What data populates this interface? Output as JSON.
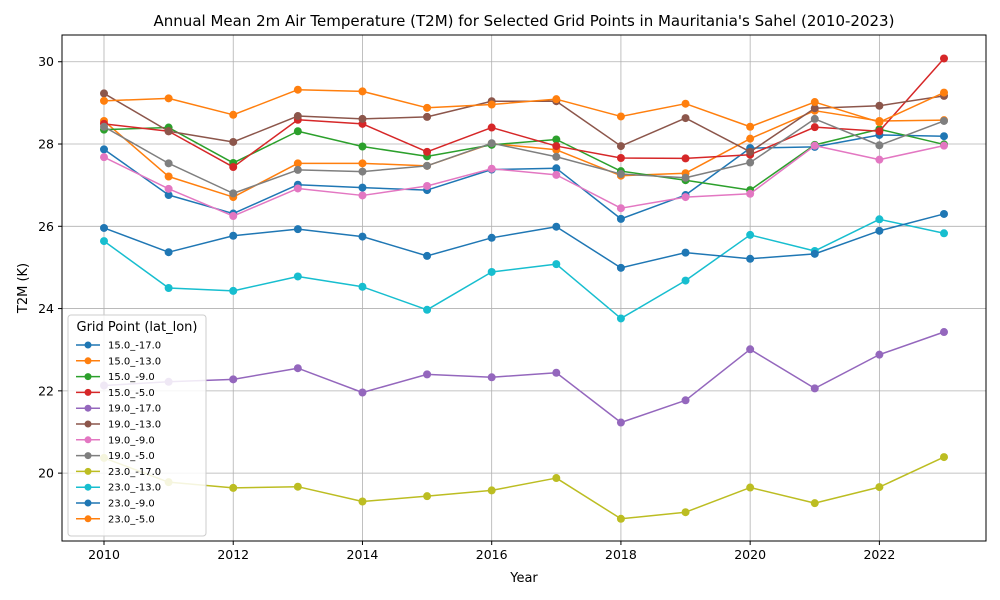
{
  "chart_data": {
    "type": "line",
    "title": "Annual Mean 2m Air Temperature (T2M) for Selected Grid Points in Mauritania's Sahel (2010-2023)",
    "xlabel": "Year",
    "ylabel": "T2M (K)",
    "x": [
      2010,
      2011,
      2012,
      2013,
      2014,
      2015,
      2016,
      2017,
      2018,
      2019,
      2020,
      2021,
      2022,
      2023
    ],
    "xlim": [
      2009.35,
      2023.65
    ],
    "ylim": [
      18.35,
      30.65
    ],
    "xticks": [
      2010,
      2012,
      2014,
      2016,
      2018,
      2020,
      2022
    ],
    "yticks": [
      20,
      22,
      24,
      26,
      28,
      30
    ],
    "grid": true,
    "legend": {
      "title": "Grid Point (lat_lon)",
      "placement": "lower-left"
    },
    "series": [
      {
        "name": "15.0_-17.0",
        "color": "#1f77b4",
        "values": [
          27.87,
          26.76,
          26.31,
          27.01,
          26.94,
          26.88,
          27.38,
          27.41,
          26.18,
          26.76,
          27.9,
          27.93,
          28.22,
          28.19
        ]
      },
      {
        "name": "15.0_-13.0",
        "color": "#ff7f0e",
        "values": [
          28.56,
          27.21,
          26.71,
          27.53,
          27.53,
          27.47,
          28.01,
          27.86,
          27.23,
          27.29,
          28.13,
          28.81,
          28.56,
          28.58
        ]
      },
      {
        "name": "15.0_-9.0",
        "color": "#2ca02c",
        "values": [
          28.35,
          28.4,
          27.54,
          28.31,
          27.94,
          27.7,
          27.98,
          28.11,
          27.34,
          27.12,
          26.88,
          27.98,
          28.36,
          27.99
        ]
      },
      {
        "name": "15.0_-5.0",
        "color": "#d62728",
        "values": [
          28.49,
          28.31,
          27.44,
          28.59,
          28.49,
          27.81,
          28.4,
          27.95,
          27.66,
          27.65,
          27.74,
          28.41,
          28.31,
          30.08
        ]
      },
      {
        "name": "19.0_-17.0",
        "color": "#9467bd",
        "values": [
          22.13,
          22.22,
          22.28,
          22.55,
          21.96,
          22.4,
          22.33,
          22.44,
          21.23,
          21.77,
          23.01,
          22.06,
          22.88,
          23.43
        ]
      },
      {
        "name": "19.0_-13.0",
        "color": "#8c564b",
        "values": [
          29.23,
          28.31,
          28.05,
          28.68,
          28.61,
          28.66,
          29.04,
          29.04,
          27.95,
          28.63,
          27.81,
          28.87,
          28.93,
          29.17
        ]
      },
      {
        "name": "19.0_-9.0",
        "color": "#e377c2",
        "values": [
          27.68,
          26.91,
          26.25,
          26.92,
          26.75,
          26.98,
          27.4,
          27.25,
          26.44,
          26.71,
          26.79,
          27.96,
          27.62,
          27.96
        ]
      },
      {
        "name": "19.0_-5.0",
        "color": "#7f7f7f",
        "values": [
          28.42,
          27.53,
          26.8,
          27.37,
          27.33,
          27.47,
          28.02,
          27.69,
          27.27,
          27.18,
          27.55,
          28.61,
          27.97,
          28.56
        ]
      },
      {
        "name": "23.0_-17.0",
        "color": "#bcbd22",
        "values": [
          20.37,
          19.78,
          19.64,
          19.67,
          19.31,
          19.44,
          19.58,
          19.88,
          18.89,
          19.05,
          19.65,
          19.27,
          19.66,
          20.39
        ]
      },
      {
        "name": "23.0_-13.0",
        "color": "#17becf",
        "values": [
          25.64,
          24.5,
          24.43,
          24.78,
          24.53,
          23.97,
          24.89,
          25.08,
          23.76,
          24.68,
          25.79,
          25.4,
          26.17,
          25.83
        ]
      },
      {
        "name": "23.0_-9.0",
        "color": "#1f77b4",
        "values": [
          25.96,
          25.37,
          25.77,
          25.93,
          25.75,
          25.28,
          25.72,
          25.99,
          24.99,
          25.36,
          25.21,
          25.33,
          25.89,
          26.3
        ]
      },
      {
        "name": "23.0_-5.0",
        "color": "#ff7f0e",
        "values": [
          29.05,
          29.11,
          28.71,
          29.32,
          29.28,
          28.88,
          28.96,
          29.09,
          28.67,
          28.98,
          28.42,
          29.02,
          28.53,
          29.25
        ]
      }
    ]
  }
}
